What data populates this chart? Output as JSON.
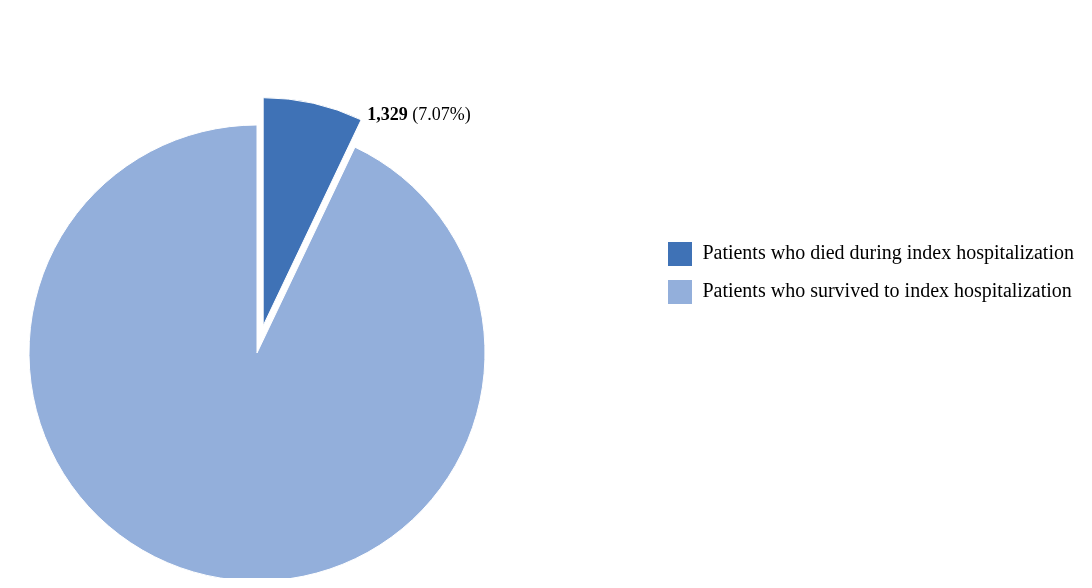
{
  "chart_data": {
    "type": "pie",
    "categories": [
      "Patients who died during index hospitalization",
      "Patients who survived to index hospitalization"
    ],
    "values": [
      7.07,
      92.93
    ],
    "colors": [
      "#3f72b6",
      "#93afdb"
    ],
    "value_labels": [
      "1,329 (7.07%)",
      null
    ],
    "legend": "right"
  }
}
